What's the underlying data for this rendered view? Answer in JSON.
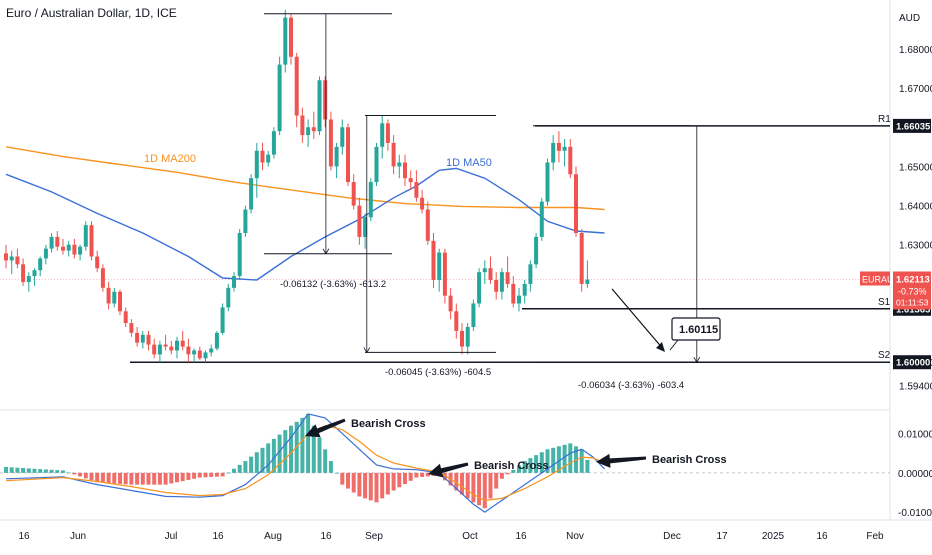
{
  "header": {
    "title": "Euro / Australian Dollar, 1D, ICE",
    "currency": "AUD"
  },
  "chart_data": {
    "type": "candlestick",
    "symbol": "EURAUD",
    "interval": "1D",
    "exchange": "ICE",
    "price_axis": {
      "range": [
        1.5878,
        1.6925
      ],
      "ticks": [
        "1.68000",
        "1.67000",
        "1.65000",
        "1.64000",
        "1.63000",
        "1.60000",
        "1.59400"
      ]
    },
    "time_axis": {
      "labels": [
        "16",
        "Jun",
        "Jul",
        "16",
        "Aug",
        "16",
        "Sep",
        "Oct",
        "16",
        "Nov",
        "Dec",
        "17",
        "2025",
        "16",
        "Feb"
      ]
    },
    "candles": [
      {
        "o": 1.6278,
        "h": 1.63,
        "l": 1.624,
        "c": 1.626
      },
      {
        "o": 1.626,
        "h": 1.6285,
        "l": 1.6225,
        "c": 1.627
      },
      {
        "o": 1.627,
        "h": 1.629,
        "l": 1.624,
        "c": 1.625
      },
      {
        "o": 1.625,
        "h": 1.6265,
        "l": 1.6195,
        "c": 1.6205
      },
      {
        "o": 1.6205,
        "h": 1.623,
        "l": 1.618,
        "c": 1.622
      },
      {
        "o": 1.622,
        "h": 1.624,
        "l": 1.6195,
        "c": 1.6235
      },
      {
        "o": 1.6235,
        "h": 1.627,
        "l": 1.622,
        "c": 1.6265
      },
      {
        "o": 1.6265,
        "h": 1.63,
        "l": 1.625,
        "c": 1.629
      },
      {
        "o": 1.629,
        "h": 1.633,
        "l": 1.628,
        "c": 1.632
      },
      {
        "o": 1.632,
        "h": 1.6335,
        "l": 1.6285,
        "c": 1.6295
      },
      {
        "o": 1.6295,
        "h": 1.6315,
        "l": 1.6275,
        "c": 1.6285
      },
      {
        "o": 1.6285,
        "h": 1.631,
        "l": 1.627,
        "c": 1.63
      },
      {
        "o": 1.63,
        "h": 1.6315,
        "l": 1.6265,
        "c": 1.6275
      },
      {
        "o": 1.6275,
        "h": 1.63,
        "l": 1.626,
        "c": 1.6295
      },
      {
        "o": 1.6295,
        "h": 1.636,
        "l": 1.6285,
        "c": 1.635
      },
      {
        "o": 1.635,
        "h": 1.636,
        "l": 1.626,
        "c": 1.627
      },
      {
        "o": 1.627,
        "h": 1.6285,
        "l": 1.623,
        "c": 1.624
      },
      {
        "o": 1.624,
        "h": 1.625,
        "l": 1.618,
        "c": 1.619
      },
      {
        "o": 1.619,
        "h": 1.6205,
        "l": 1.6135,
        "c": 1.615
      },
      {
        "o": 1.615,
        "h": 1.619,
        "l": 1.614,
        "c": 1.618
      },
      {
        "o": 1.618,
        "h": 1.6185,
        "l": 1.612,
        "c": 1.613
      },
      {
        "o": 1.613,
        "h": 1.614,
        "l": 1.609,
        "c": 1.61
      },
      {
        "o": 1.61,
        "h": 1.611,
        "l": 1.6065,
        "c": 1.6075
      },
      {
        "o": 1.6075,
        "h": 1.609,
        "l": 1.604,
        "c": 1.605
      },
      {
        "o": 1.605,
        "h": 1.608,
        "l": 1.6035,
        "c": 1.607
      },
      {
        "o": 1.607,
        "h": 1.608,
        "l": 1.603,
        "c": 1.6045
      },
      {
        "o": 1.6045,
        "h": 1.606,
        "l": 1.601,
        "c": 1.602
      },
      {
        "o": 1.602,
        "h": 1.6055,
        "l": 1.6,
        "c": 1.6045
      },
      {
        "o": 1.6045,
        "h": 1.607,
        "l": 1.603,
        "c": 1.604
      },
      {
        "o": 1.604,
        "h": 1.6055,
        "l": 1.602,
        "c": 1.603
      },
      {
        "o": 1.603,
        "h": 1.6065,
        "l": 1.601,
        "c": 1.6055
      },
      {
        "o": 1.6055,
        "h": 1.608,
        "l": 1.603,
        "c": 1.604
      },
      {
        "o": 1.604,
        "h": 1.606,
        "l": 1.6,
        "c": 1.602
      },
      {
        "o": 1.602,
        "h": 1.6035,
        "l": 1.6,
        "c": 1.603
      },
      {
        "o": 1.603,
        "h": 1.604,
        "l": 1.6005,
        "c": 1.601
      },
      {
        "o": 1.601,
        "h": 1.603,
        "l": 1.6,
        "c": 1.6025
      },
      {
        "o": 1.6025,
        "h": 1.6045,
        "l": 1.6015,
        "c": 1.6035
      },
      {
        "o": 1.6035,
        "h": 1.608,
        "l": 1.603,
        "c": 1.6075
      },
      {
        "o": 1.6075,
        "h": 1.615,
        "l": 1.607,
        "c": 1.614
      },
      {
        "o": 1.614,
        "h": 1.62,
        "l": 1.613,
        "c": 1.619
      },
      {
        "o": 1.619,
        "h": 1.623,
        "l": 1.618,
        "c": 1.622
      },
      {
        "o": 1.622,
        "h": 1.634,
        "l": 1.621,
        "c": 1.633
      },
      {
        "o": 1.633,
        "h": 1.64,
        "l": 1.632,
        "c": 1.639
      },
      {
        "o": 1.639,
        "h": 1.648,
        "l": 1.638,
        "c": 1.647
      },
      {
        "o": 1.647,
        "h": 1.656,
        "l": 1.642,
        "c": 1.654
      },
      {
        "o": 1.654,
        "h": 1.656,
        "l": 1.649,
        "c": 1.651
      },
      {
        "o": 1.651,
        "h": 1.654,
        "l": 1.65,
        "c": 1.653
      },
      {
        "o": 1.653,
        "h": 1.66,
        "l": 1.652,
        "c": 1.659
      },
      {
        "o": 1.659,
        "h": 1.678,
        "l": 1.658,
        "c": 1.676
      },
      {
        "o": 1.676,
        "h": 1.69,
        "l": 1.674,
        "c": 1.688
      },
      {
        "o": 1.688,
        "h": 1.689,
        "l": 1.676,
        "c": 1.678
      },
      {
        "o": 1.678,
        "h": 1.679,
        "l": 1.66,
        "c": 1.663
      },
      {
        "o": 1.663,
        "h": 1.665,
        "l": 1.656,
        "c": 1.658
      },
      {
        "o": 1.658,
        "h": 1.662,
        "l": 1.655,
        "c": 1.66
      },
      {
        "o": 1.66,
        "h": 1.664,
        "l": 1.657,
        "c": 1.659
      },
      {
        "o": 1.659,
        "h": 1.673,
        "l": 1.658,
        "c": 1.672
      },
      {
        "o": 1.672,
        "h": 1.673,
        "l": 1.66,
        "c": 1.662
      },
      {
        "o": 1.662,
        "h": 1.664,
        "l": 1.649,
        "c": 1.65
      },
      {
        "o": 1.65,
        "h": 1.656,
        "l": 1.647,
        "c": 1.655
      },
      {
        "o": 1.655,
        "h": 1.662,
        "l": 1.653,
        "c": 1.66
      },
      {
        "o": 1.66,
        "h": 1.661,
        "l": 1.645,
        "c": 1.646
      },
      {
        "o": 1.646,
        "h": 1.648,
        "l": 1.639,
        "c": 1.64
      },
      {
        "o": 1.64,
        "h": 1.642,
        "l": 1.63,
        "c": 1.632
      },
      {
        "o": 1.632,
        "h": 1.638,
        "l": 1.629,
        "c": 1.637
      },
      {
        "o": 1.637,
        "h": 1.647,
        "l": 1.636,
        "c": 1.646
      },
      {
        "o": 1.646,
        "h": 1.656,
        "l": 1.645,
        "c": 1.655
      },
      {
        "o": 1.655,
        "h": 1.663,
        "l": 1.652,
        "c": 1.661
      },
      {
        "o": 1.661,
        "h": 1.662,
        "l": 1.654,
        "c": 1.656
      },
      {
        "o": 1.656,
        "h": 1.658,
        "l": 1.648,
        "c": 1.65
      },
      {
        "o": 1.65,
        "h": 1.653,
        "l": 1.647,
        "c": 1.651
      },
      {
        "o": 1.651,
        "h": 1.653,
        "l": 1.645,
        "c": 1.647
      },
      {
        "o": 1.647,
        "h": 1.649,
        "l": 1.644,
        "c": 1.646
      },
      {
        "o": 1.646,
        "h": 1.649,
        "l": 1.641,
        "c": 1.642
      },
      {
        "o": 1.642,
        "h": 1.644,
        "l": 1.638,
        "c": 1.639
      },
      {
        "o": 1.639,
        "h": 1.641,
        "l": 1.63,
        "c": 1.631
      },
      {
        "o": 1.631,
        "h": 1.633,
        "l": 1.619,
        "c": 1.621
      },
      {
        "o": 1.621,
        "h": 1.629,
        "l": 1.618,
        "c": 1.628
      },
      {
        "o": 1.628,
        "h": 1.629,
        "l": 1.615,
        "c": 1.617
      },
      {
        "o": 1.617,
        "h": 1.619,
        "l": 1.611,
        "c": 1.613
      },
      {
        "o": 1.613,
        "h": 1.615,
        "l": 1.606,
        "c": 1.608
      },
      {
        "o": 1.608,
        "h": 1.61,
        "l": 1.602,
        "c": 1.604
      },
      {
        "o": 1.604,
        "h": 1.61,
        "l": 1.602,
        "c": 1.609
      },
      {
        "o": 1.609,
        "h": 1.616,
        "l": 1.608,
        "c": 1.615
      },
      {
        "o": 1.615,
        "h": 1.624,
        "l": 1.614,
        "c": 1.623
      },
      {
        "o": 1.623,
        "h": 1.626,
        "l": 1.62,
        "c": 1.624
      },
      {
        "o": 1.624,
        "h": 1.627,
        "l": 1.62,
        "c": 1.621
      },
      {
        "o": 1.621,
        "h": 1.623,
        "l": 1.616,
        "c": 1.618
      },
      {
        "o": 1.618,
        "h": 1.624,
        "l": 1.616,
        "c": 1.623
      },
      {
        "o": 1.623,
        "h": 1.627,
        "l": 1.619,
        "c": 1.62
      },
      {
        "o": 1.62,
        "h": 1.622,
        "l": 1.614,
        "c": 1.615
      },
      {
        "o": 1.615,
        "h": 1.619,
        "l": 1.613,
        "c": 1.617
      },
      {
        "o": 1.617,
        "h": 1.621,
        "l": 1.615,
        "c": 1.62
      },
      {
        "o": 1.62,
        "h": 1.626,
        "l": 1.618,
        "c": 1.625
      },
      {
        "o": 1.625,
        "h": 1.633,
        "l": 1.624,
        "c": 1.632
      },
      {
        "o": 1.632,
        "h": 1.642,
        "l": 1.631,
        "c": 1.641
      },
      {
        "o": 1.641,
        "h": 1.652,
        "l": 1.64,
        "c": 1.651
      },
      {
        "o": 1.651,
        "h": 1.658,
        "l": 1.649,
        "c": 1.656
      },
      {
        "o": 1.656,
        "h": 1.659,
        "l": 1.651,
        "c": 1.654
      },
      {
        "o": 1.654,
        "h": 1.657,
        "l": 1.65,
        "c": 1.655
      },
      {
        "o": 1.655,
        "h": 1.657,
        "l": 1.647,
        "c": 1.648
      },
      {
        "o": 1.648,
        "h": 1.65,
        "l": 1.632,
        "c": 1.633
      },
      {
        "o": 1.633,
        "h": 1.634,
        "l": 1.618,
        "c": 1.62
      },
      {
        "o": 1.62,
        "h": 1.626,
        "l": 1.619,
        "c": 1.6211
      }
    ],
    "moving_averages": [
      {
        "name": "1D MA200",
        "color": "#f7931e",
        "points": [
          [
            0,
            1.655
          ],
          [
            10,
            1.6525
          ],
          [
            20,
            1.6505
          ],
          [
            30,
            1.6485
          ],
          [
            40,
            1.646
          ],
          [
            50,
            1.644
          ],
          [
            60,
            1.642
          ],
          [
            70,
            1.6405
          ],
          [
            80,
            1.6398
          ],
          [
            90,
            1.6395
          ],
          [
            100,
            1.6395
          ],
          [
            105,
            1.639
          ]
        ]
      },
      {
        "name": "1D MA50",
        "color": "#3a6fd8",
        "points": [
          [
            0,
            1.648
          ],
          [
            8,
            1.6435
          ],
          [
            16,
            1.638
          ],
          [
            24,
            1.633
          ],
          [
            32,
            1.627
          ],
          [
            38,
            1.6215
          ],
          [
            44,
            1.621
          ],
          [
            50,
            1.627
          ],
          [
            56,
            1.632
          ],
          [
            62,
            1.6365
          ],
          [
            68,
            1.642
          ],
          [
            72,
            1.645
          ],
          [
            76,
            1.649
          ],
          [
            79,
            1.6495
          ],
          [
            84,
            1.647
          ],
          [
            90,
            1.6415
          ],
          [
            95,
            1.636
          ],
          [
            100,
            1.6335
          ],
          [
            105,
            1.633
          ]
        ]
      }
    ],
    "levels": [
      {
        "label": "R1",
        "price": 1.66035,
        "text": "1.66035"
      },
      {
        "label": "S1",
        "price": 1.61365,
        "text": "1.61365"
      },
      {
        "label": "S2",
        "price": 1.6,
        "text": "1.60000"
      }
    ],
    "measurements": [
      {
        "text": "-0.06132 (-3.63%) -613.2",
        "from_index": 47,
        "to_index": 64,
        "top": 1.689,
        "bottom": 1.6277
      },
      {
        "text": "-0.06045 (-3.63%) -604.5",
        "from_index": 64,
        "to_index": 80,
        "top": 1.663,
        "bottom": 1.6025
      },
      {
        "text": "-0.06034 (-3.63%) -603.4",
        "from_index": 94,
        "to_index": 121,
        "top": 1.6604,
        "bottom": 1.6
      }
    ],
    "projection": {
      "label": "1.60115",
      "from_index": 106,
      "from_price": 1.62,
      "to_index": 116,
      "to_price": 1.6011
    },
    "current_price": {
      "symbol": "EURAUD",
      "price": "1.62113",
      "change": "-0.73%",
      "countdown": "01:11:53"
    },
    "macd": {
      "ylim": [
        -0.012,
        0.016
      ],
      "ticks": [
        {
          "v": 0.01,
          "t": "0.01000"
        },
        {
          "v": 0.0,
          "t": "0.00000"
        },
        {
          "v": -0.01,
          "t": "-0.01000"
        }
      ],
      "macd_color": "#3a6fd8",
      "signal_color": "#f7931e",
      "macd_line": [
        [
          0,
          -0.0015
        ],
        [
          10,
          -0.001
        ],
        [
          16,
          -0.003
        ],
        [
          22,
          -0.0045
        ],
        [
          28,
          -0.006
        ],
        [
          34,
          -0.0062
        ],
        [
          38,
          -0.0058
        ],
        [
          42,
          -0.003
        ],
        [
          46,
          0.002
        ],
        [
          50,
          0.009
        ],
        [
          53,
          0.015
        ],
        [
          56,
          0.014
        ],
        [
          59,
          0.01
        ],
        [
          62,
          0.006
        ],
        [
          65,
          0.002
        ],
        [
          68,
          0.001
        ],
        [
          72,
          0.0008
        ],
        [
          76,
          0.0
        ],
        [
          79,
          -0.004
        ],
        [
          82,
          -0.008
        ],
        [
          84,
          -0.01
        ],
        [
          87,
          -0.007
        ],
        [
          91,
          -0.003
        ],
        [
          95,
          0.001
        ],
        [
          99,
          0.005
        ],
        [
          101,
          0.006
        ],
        [
          103,
          0.004
        ],
        [
          105,
          0.001
        ]
      ],
      "signal_line": [
        [
          0,
          -0.002
        ],
        [
          10,
          -0.0012
        ],
        [
          16,
          -0.0022
        ],
        [
          22,
          -0.0035
        ],
        [
          28,
          -0.005
        ],
        [
          34,
          -0.0058
        ],
        [
          38,
          -0.0055
        ],
        [
          42,
          -0.004
        ],
        [
          46,
          -0.0005
        ],
        [
          50,
          0.005
        ],
        [
          53,
          0.01
        ],
        [
          56,
          0.012
        ],
        [
          59,
          0.011
        ],
        [
          62,
          0.008
        ],
        [
          65,
          0.0045
        ],
        [
          68,
          0.0025
        ],
        [
          72,
          0.0012
        ],
        [
          76,
          0.0002
        ],
        [
          79,
          -0.0025
        ],
        [
          82,
          -0.0055
        ],
        [
          84,
          -0.007
        ],
        [
          87,
          -0.0065
        ],
        [
          91,
          -0.004
        ],
        [
          95,
          -0.001
        ],
        [
          99,
          0.0025
        ],
        [
          101,
          0.004
        ],
        [
          103,
          0.0038
        ],
        [
          105,
          0.0025
        ]
      ]
    },
    "annotations": [
      {
        "text": "1D MA200",
        "color": "#f7931e"
      },
      {
        "text": "1D MA50",
        "color": "#3a6fd8"
      },
      {
        "text": "Bearish Cross"
      },
      {
        "text": "Bearish Cross"
      },
      {
        "text": "Bearish Cross"
      }
    ],
    "up_color": "#26a69a",
    "down_color": "#ef5350"
  }
}
